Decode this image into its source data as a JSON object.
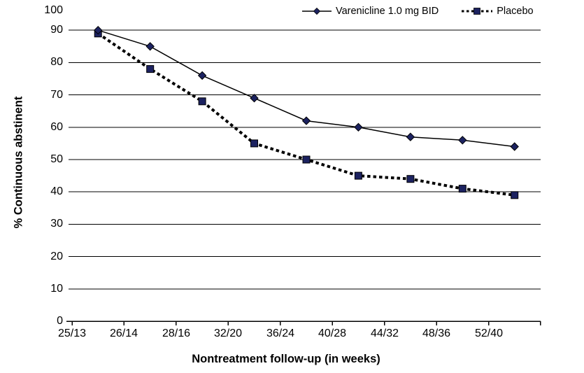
{
  "page": {
    "background": "#ffffff",
    "text_color": "#000000"
  },
  "chart_data": {
    "type": "line",
    "title": "",
    "xlabel": "Nontreatment follow-up (in weeks)",
    "ylabel": "% Continuous abstinent",
    "categories": [
      "25/13",
      "26/14",
      "28/16",
      "32/20",
      "36/24",
      "40/28",
      "44/32",
      "48/36",
      "52/40"
    ],
    "y_ticks": [
      0,
      10,
      20,
      30,
      40,
      50,
      60,
      70,
      80,
      90,
      100
    ],
    "ylim": [
      0,
      100
    ],
    "grid": "horizontal",
    "gridline_color": "#000000",
    "axis_color": "#000000",
    "legend_position": "top",
    "series": [
      {
        "name": "Varenicline 1.0 mg BID",
        "marker": "diamond",
        "line_style": "solid",
        "line_color": "#000000",
        "marker_color": "#1c2260",
        "values": [
          90,
          85,
          76,
          69,
          62,
          60,
          57,
          56,
          54
        ]
      },
      {
        "name": "Placebo",
        "marker": "square",
        "line_style": "dashed",
        "line_color": "#000000",
        "marker_color": "#1c2260",
        "values": [
          89,
          78,
          68,
          55,
          50,
          45,
          44,
          41,
          39
        ]
      }
    ]
  }
}
